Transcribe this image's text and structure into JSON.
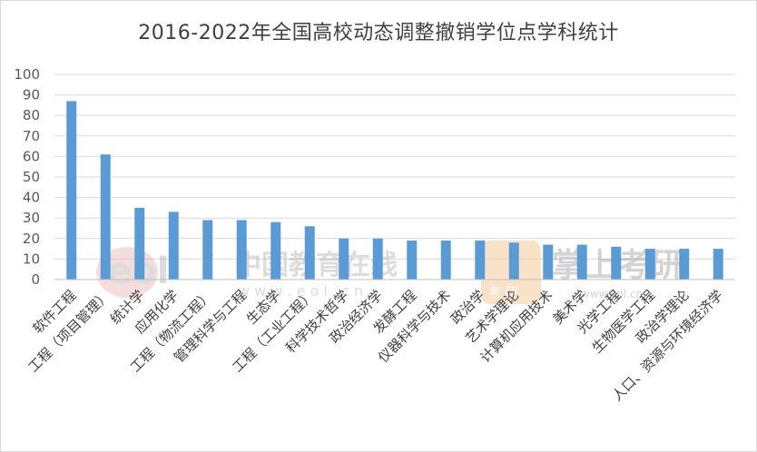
{
  "chart_data": {
    "type": "bar",
    "title": "2016-2022年全国高校动态调整撤销学位点学科统计",
    "xlabel": "",
    "ylabel": "",
    "ylim": [
      0,
      100
    ],
    "yticks": [
      0,
      10,
      20,
      30,
      40,
      50,
      60,
      70,
      80,
      90,
      100
    ],
    "grid": true,
    "legend": "none",
    "bar_color": "#5b9bd5",
    "categories": [
      "软件工程",
      "工程（项目管理）",
      "统计学",
      "应用化学",
      "工程（物流工程）",
      "管理科学与工程",
      "生态学",
      "工程（工业工程）",
      "科学技术哲学",
      "政治经济学",
      "发酵工程",
      "仪器科学与技术",
      "政治学",
      "艺术学理论",
      "计算机应用技术",
      "美术学",
      "光学工程",
      "生物医学工程",
      "政治学理论",
      "人口、资源与环境经济学"
    ],
    "values": [
      87,
      61,
      35,
      33,
      29,
      29,
      28,
      26,
      20,
      20,
      19,
      19,
      19,
      18,
      17,
      17,
      16,
      15,
      15,
      15
    ]
  },
  "watermarks": {
    "eol_logo": "eol",
    "eol_cn": "中国教育在线",
    "eol_url": "w w w . e o l . c n",
    "kaoyan_badge": "考 研",
    "zhangshang": "掌上考研",
    "zhangshang_url": "www.eol.cn"
  }
}
